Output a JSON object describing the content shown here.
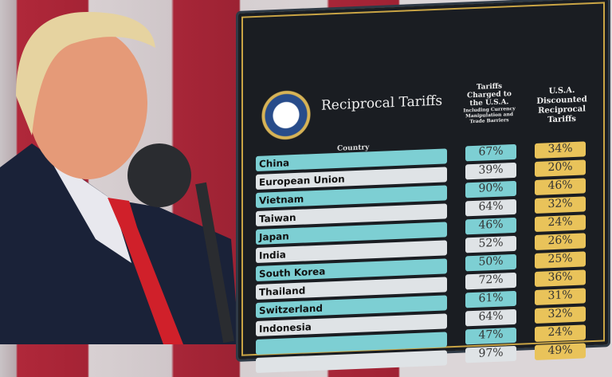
{
  "board": {
    "title": "Reciprocal Tariffs",
    "country_header": "Country",
    "col1_header": "Tariffs Charged to the U.S.A.",
    "col1_subheader": "Including Currency Manipulation and Trade Barriers",
    "col2_header": "U.S.A. Discounted Reciprocal Tariffs",
    "rows": [
      {
        "country": "China",
        "charged": "67%",
        "reciprocal": "34%"
      },
      {
        "country": "European Union",
        "charged": "39%",
        "reciprocal": "20%"
      },
      {
        "country": "Vietnam",
        "charged": "90%",
        "reciprocal": "46%"
      },
      {
        "country": "Taiwan",
        "charged": "64%",
        "reciprocal": "32%"
      },
      {
        "country": "Japan",
        "charged": "46%",
        "reciprocal": "24%"
      },
      {
        "country": "India",
        "charged": "52%",
        "reciprocal": "26%"
      },
      {
        "country": "South Korea",
        "charged": "50%",
        "reciprocal": "25%"
      },
      {
        "country": "Thailand",
        "charged": "72%",
        "reciprocal": "36%"
      },
      {
        "country": "Switzerland",
        "charged": "61%",
        "reciprocal": "31%"
      },
      {
        "country": "Indonesia",
        "charged": "64%",
        "reciprocal": "32%"
      },
      {
        "country": "",
        "charged": "47%",
        "reciprocal": "24%"
      },
      {
        "country": "",
        "charged": "97%",
        "reciprocal": "49%"
      }
    ]
  },
  "colors": {
    "teal": "#7dcfd3",
    "gold": "#e9c35a",
    "board": "#1a1d22",
    "tie": "#d0202a"
  }
}
